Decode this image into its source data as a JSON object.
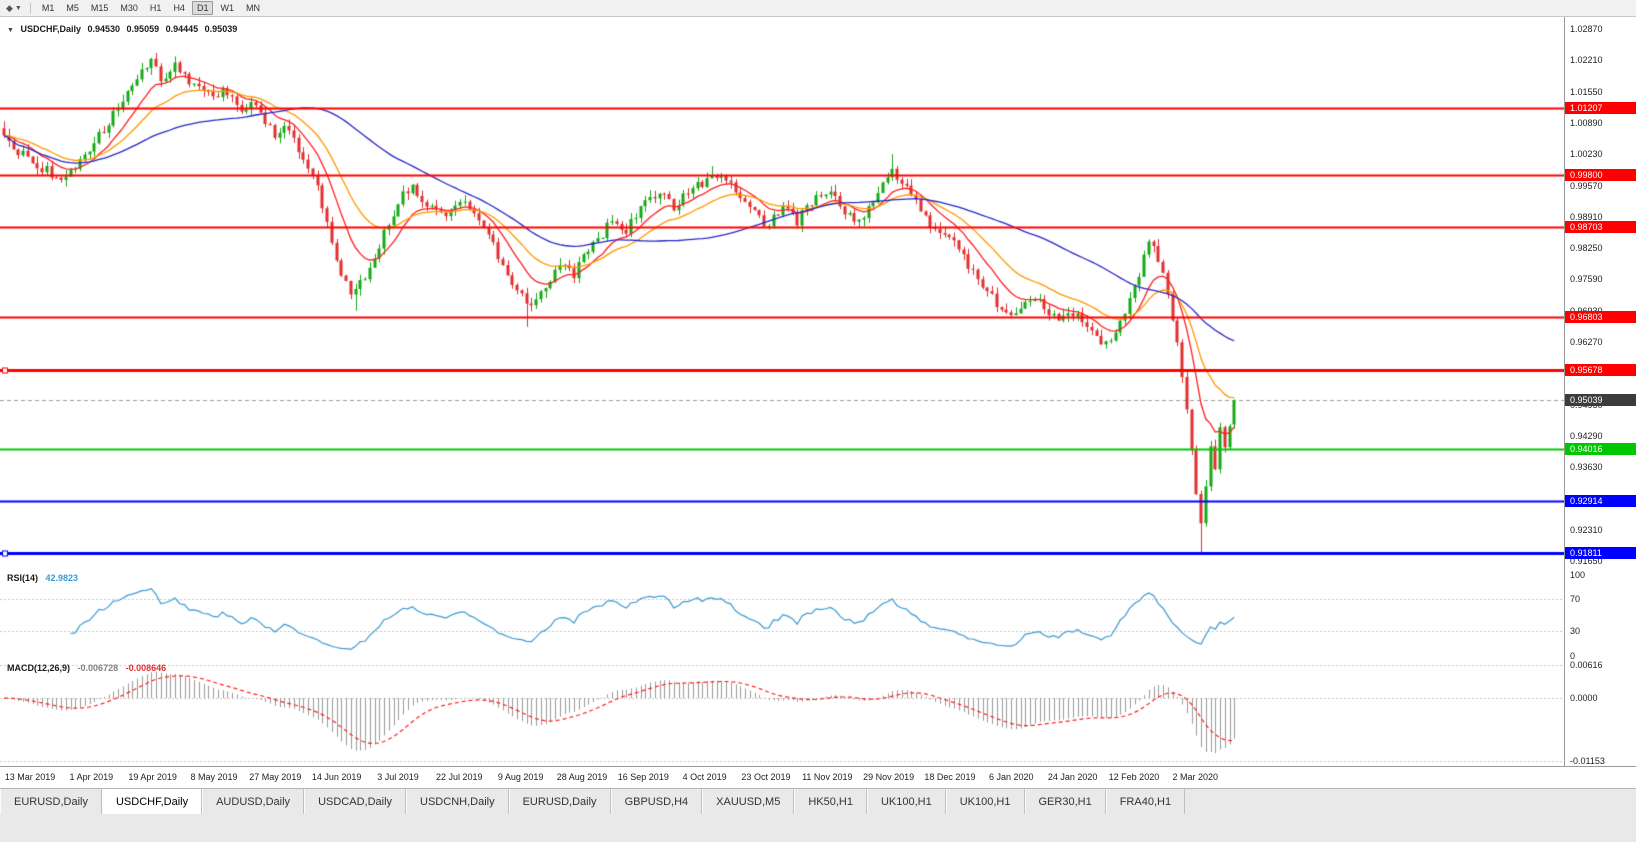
{
  "colors": {
    "candle_up": "#18a818",
    "candle_down": "#e03030",
    "ma_fast": "#ff2020",
    "ma_mid": "#ff9900",
    "ma_slow": "#2828c8",
    "level_red": "#ff0000",
    "level_green": "#00c800",
    "level_blue": "#0000ff",
    "current_price_line": "#a0a0a0",
    "current_price_badge_bg": "#3c3c3c",
    "rsi_line": "#3d9bd5",
    "macd_histogram": "#9a9a9a",
    "macd_signal": "#ff2020",
    "axis_text": "#222222"
  },
  "toolbar": {
    "timeframes": [
      "M1",
      "M5",
      "M15",
      "M30",
      "H1",
      "H4",
      "D1",
      "W1",
      "MN"
    ],
    "active_timeframe": "D1"
  },
  "chart_header": {
    "symbol_title": "USDCHF,Daily",
    "open": "0.94530",
    "high": "0.95059",
    "low": "0.94445",
    "close": "0.95039"
  },
  "chart_data": {
    "type": "candlestick",
    "title": "USDCHF,Daily",
    "symbol": "USDCHF",
    "timeframe": "Daily",
    "last_candle": {
      "open": 0.9453,
      "high": 0.95059,
      "low": 0.94445,
      "close": 0.95039
    },
    "current_price": 0.95039,
    "current_price_label": "0.95039",
    "visible_range": {
      "price_max": 1.03124,
      "price_min": 0.91463
    },
    "candle_count": 260,
    "y_ticks": [
      "1.02870",
      "1.02210",
      "1.01550",
      "1.00890",
      "1.00230",
      "0.99570",
      "0.98910",
      "0.98250",
      "0.97590",
      "0.96930",
      "0.96270",
      "0.95610",
      "0.94950",
      "0.94290",
      "0.93630",
      "0.92970",
      "0.92310",
      "0.91650"
    ],
    "x_labels": [
      "13 Mar 2019",
      "1 Apr 2019",
      "19 Apr 2019",
      "8 May 2019",
      "27 May 2019",
      "14 Jun 2019",
      "3 Jul 2019",
      "22 Jul 2019",
      "9 Aug 2019",
      "28 Aug 2019",
      "16 Sep 2019",
      "4 Oct 2019",
      "23 Oct 2019",
      "11 Nov 2019",
      "29 Nov 2019",
      "18 Dec 2019",
      "6 Jan 2020",
      "24 Jan 2020",
      "12 Feb 2020",
      "2 Mar 2020"
    ],
    "horizontal_levels": [
      {
        "label": "1.01207",
        "price": 1.01207,
        "color": "level_red",
        "width": 2
      },
      {
        "label": "0.99800",
        "price": 0.998,
        "color": "level_red",
        "width": 2
      },
      {
        "label": "0.98703",
        "price": 0.98703,
        "color": "level_red",
        "width": 2
      },
      {
        "label": "0.96803",
        "price": 0.96803,
        "color": "level_red",
        "width": 2
      },
      {
        "label": "0.95678",
        "price": 0.95678,
        "color": "level_red",
        "width": 3,
        "marker": true
      },
      {
        "label": "0.94016",
        "price": 0.94016,
        "color": "level_green",
        "width": 2
      },
      {
        "label": "0.92914",
        "price": 0.92914,
        "color": "level_blue",
        "width": 2
      },
      {
        "label": "0.91811",
        "price": 0.91811,
        "color": "level_blue",
        "width": 3,
        "marker": true
      }
    ],
    "close_path": [
      [
        0,
        1.006
      ],
      [
        4,
        1.0022
      ],
      [
        8,
        0.9992
      ],
      [
        12,
        0.9975
      ],
      [
        16,
        1.0012
      ],
      [
        20,
        1.006
      ],
      [
        24,
        1.0125
      ],
      [
        28,
        1.018
      ],
      [
        31,
        1.0218
      ],
      [
        33,
        1.0185
      ],
      [
        36,
        1.0208
      ],
      [
        40,
        1.017
      ],
      [
        44,
        1.0142
      ],
      [
        46,
        1.0165
      ],
      [
        50,
        1.011
      ],
      [
        53,
        1.0132
      ],
      [
        57,
        1.0062
      ],
      [
        60,
        1.0082
      ],
      [
        63,
        1.0012
      ],
      [
        66,
        0.9952
      ],
      [
        70,
        0.98
      ],
      [
        73,
        0.973
      ],
      [
        76,
        0.9762
      ],
      [
        79,
        0.9832
      ],
      [
        83,
        0.9922
      ],
      [
        86,
        0.9958
      ],
      [
        89,
        0.9915
      ],
      [
        92,
        0.9892
      ],
      [
        96,
        0.9932
      ],
      [
        99,
        0.9892
      ],
      [
        102,
        0.9852
      ],
      [
        105,
        0.9792
      ],
      [
        108,
        0.9732
      ],
      [
        111,
        0.9702
      ],
      [
        114,
        0.9748
      ],
      [
        117,
        0.9792
      ],
      [
        120,
        0.9772
      ],
      [
        122,
        0.9802
      ],
      [
        125,
        0.9842
      ],
      [
        128,
        0.9882
      ],
      [
        131,
        0.9862
      ],
      [
        135,
        0.9922
      ],
      [
        138,
        0.9948
      ],
      [
        141,
        0.9912
      ],
      [
        144,
        0.9942
      ],
      [
        148,
        0.9966
      ],
      [
        151,
        0.9986
      ],
      [
        154,
        0.9942
      ],
      [
        157,
        0.9902
      ],
      [
        161,
        0.9872
      ],
      [
        164,
        0.9912
      ],
      [
        167,
        0.9882
      ],
      [
        170,
        0.9922
      ],
      [
        174,
        0.9946
      ],
      [
        177,
        0.9902
      ],
      [
        180,
        0.9882
      ],
      [
        183,
        0.9932
      ],
      [
        187,
        0.9986
      ],
      [
        190,
        0.9962
      ],
      [
        193,
        0.9902
      ],
      [
        196,
        0.9862
      ],
      [
        200,
        0.9832
      ],
      [
        203,
        0.9792
      ],
      [
        206,
        0.9752
      ],
      [
        209,
        0.9702
      ],
      [
        213,
        0.9687
      ],
      [
        216,
        0.9722
      ],
      [
        219,
        0.9702
      ],
      [
        222,
        0.9672
      ],
      [
        226,
        0.9692
      ],
      [
        229,
        0.9652
      ],
      [
        232,
        0.9622
      ],
      [
        235,
        0.9662
      ],
      [
        238,
        0.9742
      ],
      [
        241,
        0.9838
      ],
      [
        243,
        0.9802
      ],
      [
        245,
        0.9732
      ],
      [
        246,
        0.9682
      ],
      [
        247,
        0.9622
      ],
      [
        248,
        0.9552
      ],
      [
        249,
        0.9482
      ],
      [
        250,
        0.9392
      ],
      [
        251,
        0.9312
      ],
      [
        252,
        0.9245
      ],
      [
        253,
        0.9332
      ],
      [
        254,
        0.9402
      ],
      [
        255,
        0.9362
      ],
      [
        256,
        0.9452
      ],
      [
        257,
        0.9412
      ],
      [
        258,
        0.9453
      ],
      [
        259,
        0.95039
      ]
    ],
    "overrides": [
      {
        "i": 31,
        "high": 1.02264
      },
      {
        "i": 74,
        "low": 0.9693
      },
      {
        "i": 110,
        "low": 0.9659
      },
      {
        "i": 149,
        "high": 0.9998
      },
      {
        "i": 187,
        "high": 1.0023
      },
      {
        "i": 232,
        "low": 0.9613
      },
      {
        "i": 252,
        "low": 0.9182
      },
      {
        "i": 259,
        "open": 0.9453,
        "high": 0.95059,
        "low": 0.94445,
        "close": 0.95039
      }
    ],
    "moving_averages": [
      {
        "name": "ma-fast",
        "type": "ema",
        "period": 10,
        "color": "ma_fast"
      },
      {
        "name": "ma-mid",
        "type": "ema",
        "period": 21,
        "color": "ma_mid"
      },
      {
        "name": "ma-slow",
        "type": "sma",
        "period": 50,
        "color": "ma_slow"
      }
    ],
    "rsi": {
      "label": "RSI(14)",
      "value": "42.9823",
      "period": 14,
      "axis_labels": [
        "100",
        "70",
        "30",
        "0"
      ],
      "level_lines": [
        70,
        30
      ]
    },
    "macd": {
      "label": "MACD(12,26,9)",
      "value_main": "-0.006728",
      "value_signal": "-0.008646",
      "fast": 12,
      "slow": 26,
      "signal": 9,
      "axis_labels": [
        "0.00616",
        "0.0000",
        "-0.01153"
      ],
      "scale_max": 0.007,
      "scale_min": -0.0125
    }
  },
  "tabs": {
    "items": [
      "EURUSD,Daily",
      "USDCHF,Daily",
      "AUDUSD,Daily",
      "USDCAD,Daily",
      "USDCNH,Daily",
      "EURUSD,Daily",
      "GBPUSD,H4",
      "XAUUSD,M5",
      "HK50,H1",
      "UK100,H1",
      "UK100,H1",
      "GER30,H1",
      "FRA40,H1"
    ],
    "active_index": 1
  }
}
